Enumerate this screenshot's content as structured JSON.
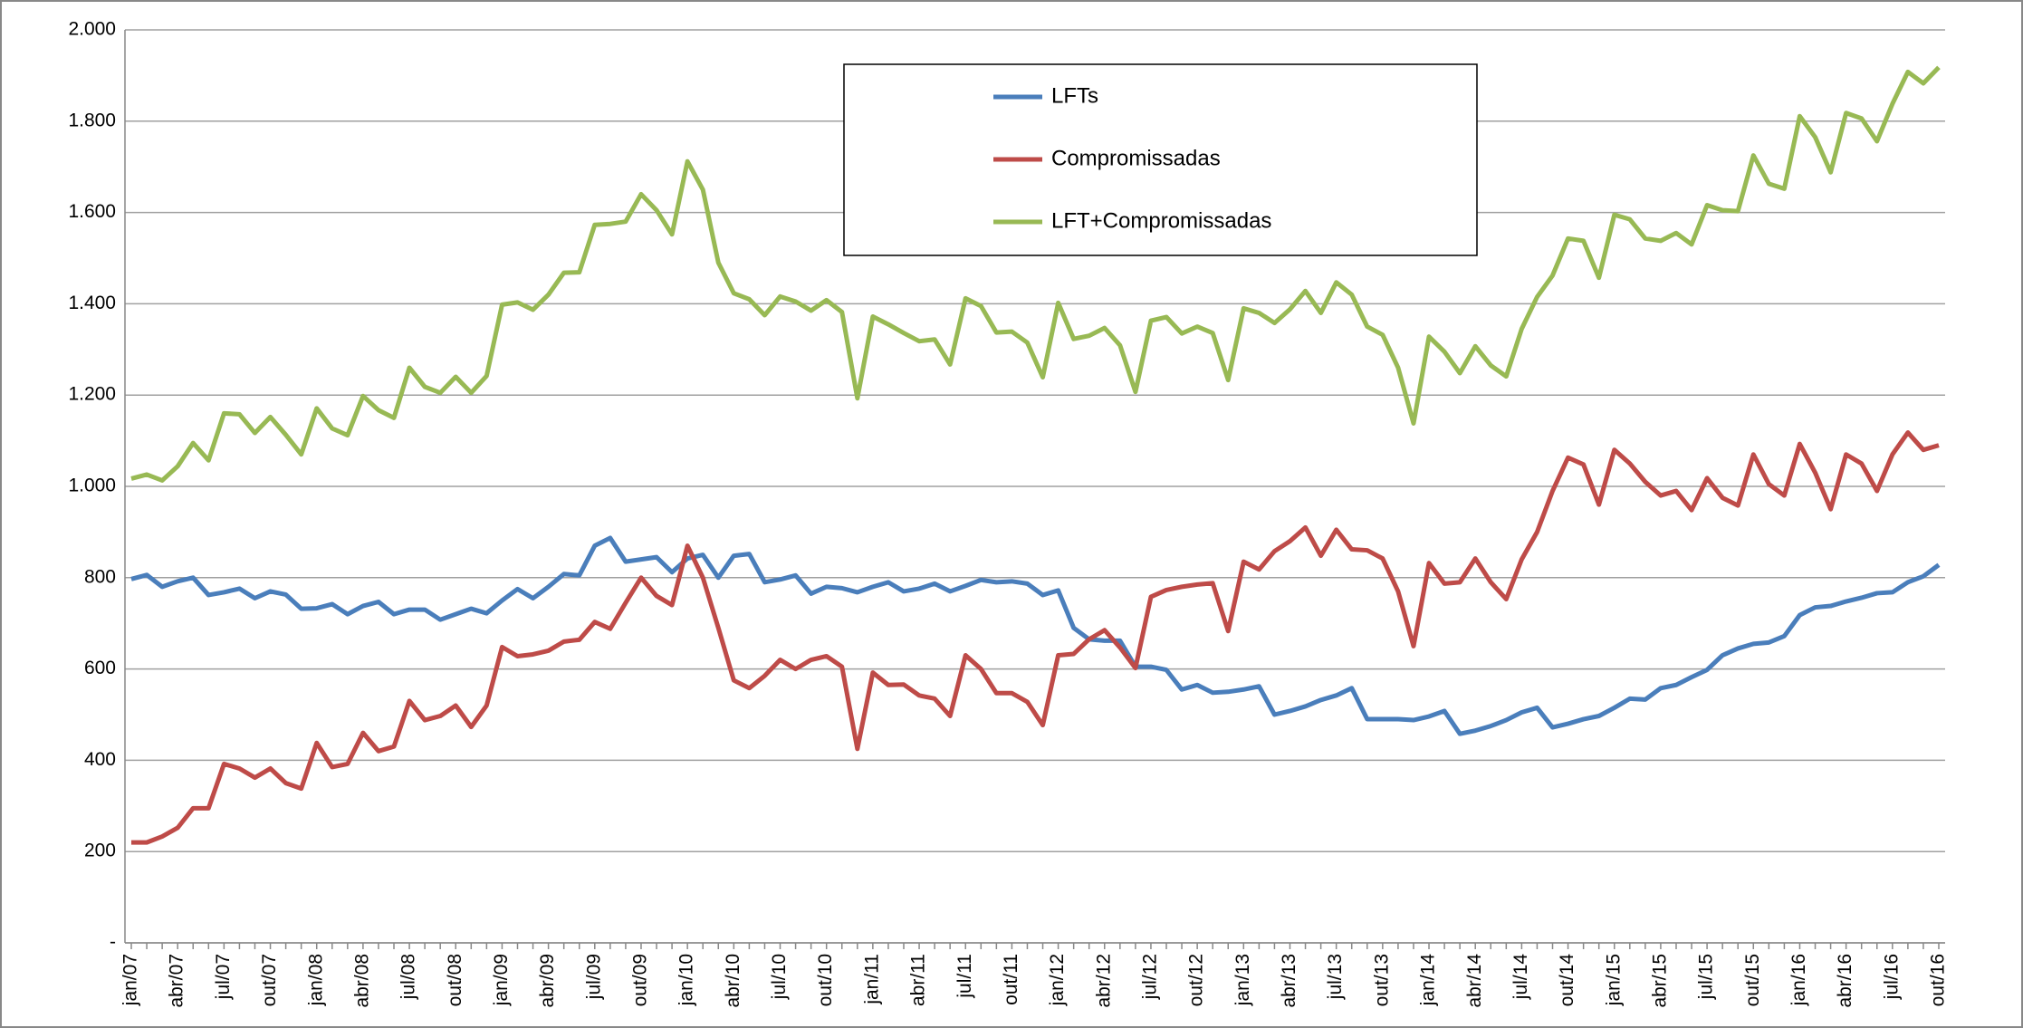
{
  "chart_data": {
    "type": "line",
    "categories": [
      "jan/07",
      null,
      null,
      "abr/07",
      null,
      null,
      "jul/07",
      null,
      null,
      "out/07",
      null,
      null,
      "jan/08",
      null,
      null,
      "abr/08",
      null,
      null,
      "jul/08",
      null,
      null,
      "out/08",
      null,
      null,
      "jan/09",
      null,
      null,
      "abr/09",
      null,
      null,
      "jul/09",
      null,
      null,
      "out/09",
      null,
      null,
      "jan/10",
      null,
      null,
      "abr/10",
      null,
      null,
      "jul/10",
      null,
      null,
      "out/10",
      null,
      null,
      "jan/11",
      null,
      null,
      "abr/11",
      null,
      null,
      "jul/11",
      null,
      null,
      "out/11",
      null,
      null,
      "jan/12",
      null,
      null,
      "abr/12",
      null,
      null,
      "jul/12",
      null,
      null,
      "out/12",
      null,
      null,
      "jan/13",
      null,
      null,
      "abr/13",
      null,
      null,
      "jul/13",
      null,
      null,
      "out/13",
      null,
      null,
      "jan/14",
      null,
      null,
      "abr/14",
      null,
      null,
      "jul/14",
      null,
      null,
      "out/14",
      null,
      null,
      "jan/15",
      null,
      null,
      "abr/15",
      null,
      null,
      "jul/15",
      null,
      null,
      "out/15",
      null,
      null,
      "jan/16",
      null,
      null,
      "abr/16",
      null,
      null,
      "jul/16",
      null,
      null,
      "out/16"
    ],
    "series": [
      {
        "name": "LFTs",
        "color": "#4a7ebb",
        "values": [
          797,
          806,
          780,
          792,
          800,
          762,
          768,
          776,
          755,
          770,
          763,
          732,
          733,
          742,
          720,
          738,
          747,
          720,
          730,
          730,
          708,
          720,
          732,
          722,
          750,
          775,
          755,
          780,
          808,
          805,
          870,
          887,
          835,
          840,
          845,
          812,
          842,
          850,
          800,
          848,
          852,
          790,
          796,
          805,
          765,
          780,
          777,
          768,
          780,
          790,
          770,
          776,
          787,
          770,
          782,
          795,
          790,
          792,
          787,
          762,
          772,
          690,
          665,
          662,
          662,
          605,
          605,
          598,
          555,
          565,
          548,
          550,
          555,
          562,
          500,
          508,
          518,
          532,
          542,
          558,
          490,
          490,
          490,
          488,
          496,
          508,
          458,
          465,
          475,
          488,
          505,
          515,
          472,
          480,
          490,
          497,
          515,
          535,
          533,
          558,
          565,
          582,
          598,
          630,
          645,
          655,
          658,
          672,
          718,
          735,
          738,
          748,
          756,
          766,
          768,
          790,
          803,
          828
        ]
      },
      {
        "name": "Compromissadas",
        "color": "#be4b48",
        "values": [
          220,
          220,
          233,
          252,
          295,
          295,
          392,
          382,
          362,
          382,
          350,
          338,
          438,
          385,
          392,
          460,
          420,
          430,
          530,
          488,
          497,
          520,
          473,
          520,
          648,
          628,
          632,
          640,
          660,
          664,
          703,
          688,
          745,
          800,
          760,
          740,
          870,
          800,
          690,
          575,
          558,
          585,
          620,
          600,
          620,
          628,
          605,
          425,
          592,
          565,
          566,
          542,
          535,
          497,
          630,
          600,
          547,
          547,
          528,
          477,
          630,
          633,
          665,
          685,
          647,
          602,
          758,
          773,
          780,
          785,
          788,
          683,
          835,
          818,
          858,
          880,
          910,
          848,
          905,
          862,
          860,
          842,
          770,
          650,
          832,
          787,
          790,
          842,
          790,
          753,
          840,
          900,
          990,
          1063,
          1048,
          960,
          1080,
          1050,
          1010,
          980,
          990,
          948,
          1018,
          975,
          958,
          1070,
          1005,
          980,
          1093,
          1030,
          950,
          1070,
          1050,
          990,
          1070,
          1118,
          1080,
          1090
        ]
      },
      {
        "name": "LFT+Compromissadas",
        "color": "#98b954",
        "values": [
          1017,
          1026,
          1013,
          1044,
          1095,
          1057,
          1160,
          1158,
          1117,
          1152,
          1113,
          1070,
          1171,
          1127,
          1112,
          1198,
          1167,
          1150,
          1260,
          1218,
          1205,
          1240,
          1205,
          1242,
          1398,
          1403,
          1387,
          1420,
          1468,
          1469,
          1573,
          1575,
          1580,
          1640,
          1605,
          1552,
          1712,
          1650,
          1490,
          1423,
          1410,
          1375,
          1416,
          1405,
          1385,
          1408,
          1382,
          1193,
          1372,
          1355,
          1336,
          1318,
          1322,
          1267,
          1412,
          1395,
          1337,
          1339,
          1315,
          1239,
          1402,
          1323,
          1330,
          1347,
          1309,
          1207,
          1363,
          1371,
          1335,
          1350,
          1336,
          1233,
          1390,
          1380,
          1358,
          1388,
          1428,
          1380,
          1447,
          1420,
          1350,
          1332,
          1260,
          1138,
          1328,
          1295,
          1248,
          1307,
          1265,
          1241,
          1345,
          1415,
          1462,
          1543,
          1538,
          1457,
          1595,
          1585,
          1543,
          1538,
          1555,
          1530,
          1616,
          1605,
          1603,
          1725,
          1663,
          1652,
          1811,
          1765,
          1688,
          1818,
          1806,
          1756,
          1838,
          1908,
          1883,
          1918
        ]
      }
    ],
    "ylim": [
      0,
      2000
    ],
    "yticks": [
      {
        "value": 0,
        "label": "-"
      },
      200,
      400,
      600,
      800,
      {
        "value": 1000,
        "label": "1.000"
      },
      {
        "value": 1200,
        "label": "1.200"
      },
      {
        "value": 1400,
        "label": "1.400"
      },
      {
        "value": 1600,
        "label": "1.600"
      },
      {
        "value": 1800,
        "label": "1.800"
      },
      {
        "value": 2000,
        "label": "2.000"
      }
    ],
    "grid": true,
    "legend": "top"
  }
}
